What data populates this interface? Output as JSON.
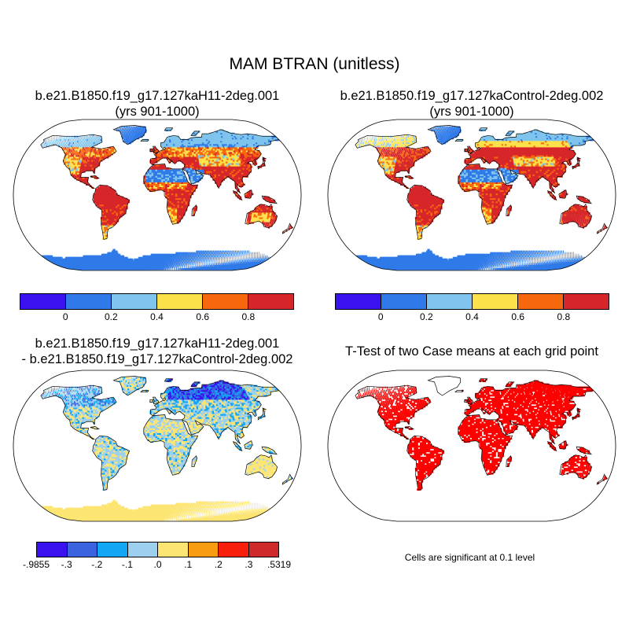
{
  "title": "MAM BTRAN (unitless)",
  "panels": {
    "top_left": {
      "title_line1": "b.e21.B1850.f19_g17.127kaH11-2deg.001",
      "title_line2": "(yrs 901-1000)",
      "variant": "case1"
    },
    "top_right": {
      "title_line1": "b.e21.B1850.f19_g17.127kaControl-2deg.002",
      "title_line2": "(yrs 901-1000)",
      "variant": "case2"
    },
    "bottom_left": {
      "title_line1": "b.e21.B1850.f19_g17.127kaH11-2deg.001",
      "title_line2": "- b.e21.B1850.f19_g17.127kaControl-2deg.002",
      "variant": "diff"
    },
    "bottom_right": {
      "title_line1": "T-Test of two Case means at each grid point",
      "variant": "ttest",
      "note": "Cells are significant at 0.1 level"
    }
  },
  "colorbars": {
    "case": {
      "colors": [
        "#3a12f0",
        "#2f7ae8",
        "#7fc4ec",
        "#fde14a",
        "#f7680e",
        "#d7262a"
      ],
      "labels": [
        "0",
        "0.2",
        "0.4",
        "0.6",
        "0.8"
      ]
    },
    "diff": {
      "colors": [
        "#3a12f0",
        "#3b63e0",
        "#12a6f4",
        "#9dd0ee",
        "#fde573",
        "#f89d12",
        "#f8200d",
        "#cf2a2a"
      ],
      "labels": [
        "-.9855",
        "-.3",
        "-.2",
        "-.1",
        ".0",
        ".1",
        ".2",
        ".3",
        ".5319"
      ]
    }
  },
  "colors": {
    "significant": "#ff0000",
    "ocean": "#ffffff",
    "coastline": "#000000"
  }
}
